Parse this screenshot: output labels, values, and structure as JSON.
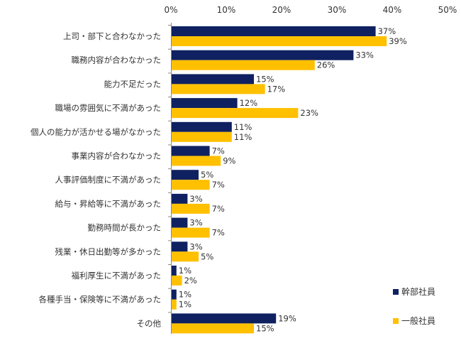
{
  "chart_data": {
    "type": "bar",
    "orientation": "horizontal",
    "title": "",
    "xlabel": "",
    "ylabel": "",
    "xlim": [
      0,
      50
    ],
    "ticks": [
      "0%",
      "10%",
      "20%",
      "30%",
      "40%",
      "50%"
    ],
    "tick_values": [
      0,
      10,
      20,
      30,
      40,
      50
    ],
    "value_suffix": "%",
    "grid": false,
    "legend_position": "bottom-right",
    "categories": [
      "上司・部下と合わなかった",
      "職務内容が合わなかった",
      "能力不足だった",
      "職場の雰囲気に不満があった",
      "個人の能力が活かせる場がなかった",
      "事業内容が合わなかった",
      "人事評価制度に不満があった",
      "給与・昇給等に不満があった",
      "勤務時間が長かった",
      "残業・休日出勤等が多かった",
      "福利厚生に不満があった",
      "各種手当・保険等に不満があった",
      "その他"
    ],
    "series": [
      {
        "name": "幹部社員",
        "color": "#0f2160",
        "values": [
          37,
          33,
          15,
          12,
          11,
          7,
          5,
          3,
          3,
          3,
          1,
          1,
          19
        ]
      },
      {
        "name": "一般社員",
        "color": "#ffc000",
        "values": [
          39,
          26,
          17,
          23,
          11,
          9,
          7,
          7,
          7,
          5,
          2,
          1,
          15
        ]
      }
    ]
  }
}
